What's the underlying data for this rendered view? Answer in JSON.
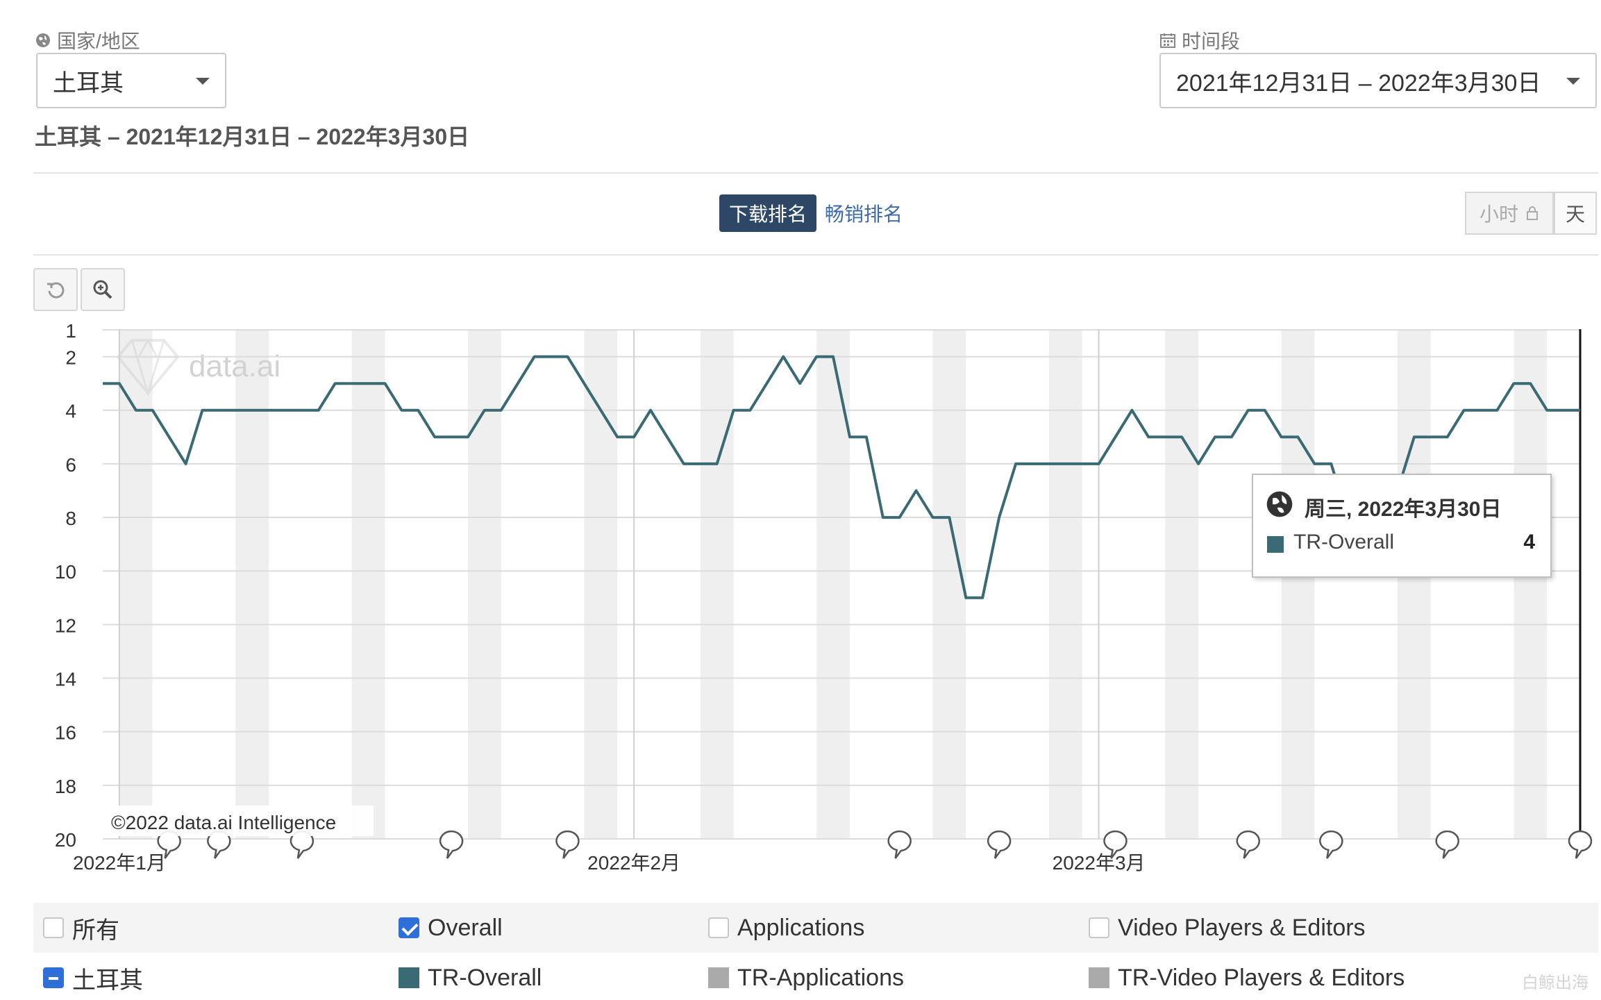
{
  "filters": {
    "country_label": "国家/地区",
    "country_value": "土耳其",
    "period_label": "时间段",
    "period_value": "2021年12月31日 – 2022年3月30日"
  },
  "subtitle": "土耳其 – 2021年12月31日 – 2022年3月30日",
  "tabs": {
    "download": "下载排名",
    "grossing": "畅销排名"
  },
  "granularity": {
    "hour": "小时",
    "day": "天"
  },
  "tooltip": {
    "date": "周三, 2022年3月30日",
    "series": "TR-Overall",
    "value": "4"
  },
  "legend": {
    "categories": [
      {
        "label": "所有",
        "checked": false
      },
      {
        "label": "Overall",
        "checked": true
      },
      {
        "label": "Applications",
        "checked": false
      },
      {
        "label": "Video Players & Editors",
        "checked": false
      }
    ],
    "country": "土耳其",
    "series": [
      {
        "label": "TR-Overall",
        "color": "#3a6a74"
      },
      {
        "label": "TR-Applications",
        "color": "#aaaaaa"
      },
      {
        "label": "TR-Video Players & Editors",
        "color": "#aaaaaa"
      }
    ]
  },
  "watermark_br": "白鲸出海",
  "chart_data": {
    "type": "line",
    "copyright": "©2022 data.ai Intelligence",
    "watermark": "data.ai",
    "yaxis": {
      "ticks": [
        1,
        2,
        4,
        6,
        8,
        10,
        12,
        14,
        16,
        18,
        20
      ],
      "reversed": true,
      "range": [
        1,
        20
      ]
    },
    "xaxis": {
      "start": "2021-12-31",
      "end": "2022-03-30",
      "tick_labels": [
        {
          "date": "2022-01-01",
          "label": "2022年1月"
        },
        {
          "date": "2022-02-01",
          "label": "2022年2月"
        },
        {
          "date": "2022-03-01",
          "label": "2022年3月"
        }
      ]
    },
    "weekend_bands": true,
    "series": [
      {
        "name": "TR-Overall",
        "color": "#3a6a74",
        "points": [
          [
            "2021-12-31",
            3
          ],
          [
            "2022-01-01",
            3
          ],
          [
            "2022-01-02",
            4
          ],
          [
            "2022-01-03",
            4
          ],
          [
            "2022-01-04",
            5
          ],
          [
            "2022-01-05",
            6
          ],
          [
            "2022-01-06",
            4
          ],
          [
            "2022-01-07",
            4
          ],
          [
            "2022-01-08",
            4
          ],
          [
            "2022-01-09",
            4
          ],
          [
            "2022-01-10",
            4
          ],
          [
            "2022-01-11",
            4
          ],
          [
            "2022-01-12",
            4
          ],
          [
            "2022-01-13",
            4
          ],
          [
            "2022-01-14",
            3
          ],
          [
            "2022-01-15",
            3
          ],
          [
            "2022-01-16",
            3
          ],
          [
            "2022-01-17",
            3
          ],
          [
            "2022-01-18",
            4
          ],
          [
            "2022-01-19",
            4
          ],
          [
            "2022-01-20",
            5
          ],
          [
            "2022-01-21",
            5
          ],
          [
            "2022-01-22",
            5
          ],
          [
            "2022-01-23",
            4
          ],
          [
            "2022-01-24",
            4
          ],
          [
            "2022-01-25",
            3
          ],
          [
            "2022-01-26",
            2
          ],
          [
            "2022-01-27",
            2
          ],
          [
            "2022-01-28",
            2
          ],
          [
            "2022-01-29",
            3
          ],
          [
            "2022-01-30",
            4
          ],
          [
            "2022-01-31",
            5
          ],
          [
            "2022-02-01",
            5
          ],
          [
            "2022-02-02",
            4
          ],
          [
            "2022-02-03",
            5
          ],
          [
            "2022-02-04",
            6
          ],
          [
            "2022-02-05",
            6
          ],
          [
            "2022-02-06",
            6
          ],
          [
            "2022-02-07",
            4
          ],
          [
            "2022-02-08",
            4
          ],
          [
            "2022-02-09",
            3
          ],
          [
            "2022-02-10",
            2
          ],
          [
            "2022-02-11",
            3
          ],
          [
            "2022-02-12",
            2
          ],
          [
            "2022-02-13",
            2
          ],
          [
            "2022-02-14",
            5
          ],
          [
            "2022-02-15",
            5
          ],
          [
            "2022-02-16",
            8
          ],
          [
            "2022-02-17",
            8
          ],
          [
            "2022-02-18",
            7
          ],
          [
            "2022-02-19",
            8
          ],
          [
            "2022-02-20",
            8
          ],
          [
            "2022-02-21",
            11
          ],
          [
            "2022-02-22",
            11
          ],
          [
            "2022-02-23",
            8
          ],
          [
            "2022-02-24",
            6
          ],
          [
            "2022-02-25",
            6
          ],
          [
            "2022-02-26",
            6
          ],
          [
            "2022-02-27",
            6
          ],
          [
            "2022-02-28",
            6
          ],
          [
            "2022-03-01",
            6
          ],
          [
            "2022-03-02",
            5
          ],
          [
            "2022-03-03",
            4
          ],
          [
            "2022-03-04",
            5
          ],
          [
            "2022-03-05",
            5
          ],
          [
            "2022-03-06",
            5
          ],
          [
            "2022-03-07",
            6
          ],
          [
            "2022-03-08",
            5
          ],
          [
            "2022-03-09",
            5
          ],
          [
            "2022-03-10",
            4
          ],
          [
            "2022-03-11",
            4
          ],
          [
            "2022-03-12",
            5
          ],
          [
            "2022-03-13",
            5
          ],
          [
            "2022-03-14",
            6
          ],
          [
            "2022-03-15",
            6
          ],
          [
            "2022-03-16",
            8
          ],
          [
            "2022-03-17",
            7
          ],
          [
            "2022-03-18",
            8
          ],
          [
            "2022-03-19",
            7
          ],
          [
            "2022-03-20",
            5
          ],
          [
            "2022-03-21",
            5
          ],
          [
            "2022-03-22",
            5
          ],
          [
            "2022-03-23",
            4
          ],
          [
            "2022-03-24",
            4
          ],
          [
            "2022-03-25",
            4
          ],
          [
            "2022-03-26",
            3
          ],
          [
            "2022-03-27",
            3
          ],
          [
            "2022-03-28",
            4
          ],
          [
            "2022-03-29",
            4
          ],
          [
            "2022-03-30",
            4
          ]
        ]
      }
    ],
    "event_markers": [
      "2022-01-04",
      "2022-01-07",
      "2022-01-12",
      "2022-01-21",
      "2022-01-28",
      "2022-02-17",
      "2022-02-23",
      "2022-03-02",
      "2022-03-10",
      "2022-03-15",
      "2022-03-22",
      "2022-03-30"
    ],
    "hover_date": "2022-03-30"
  }
}
